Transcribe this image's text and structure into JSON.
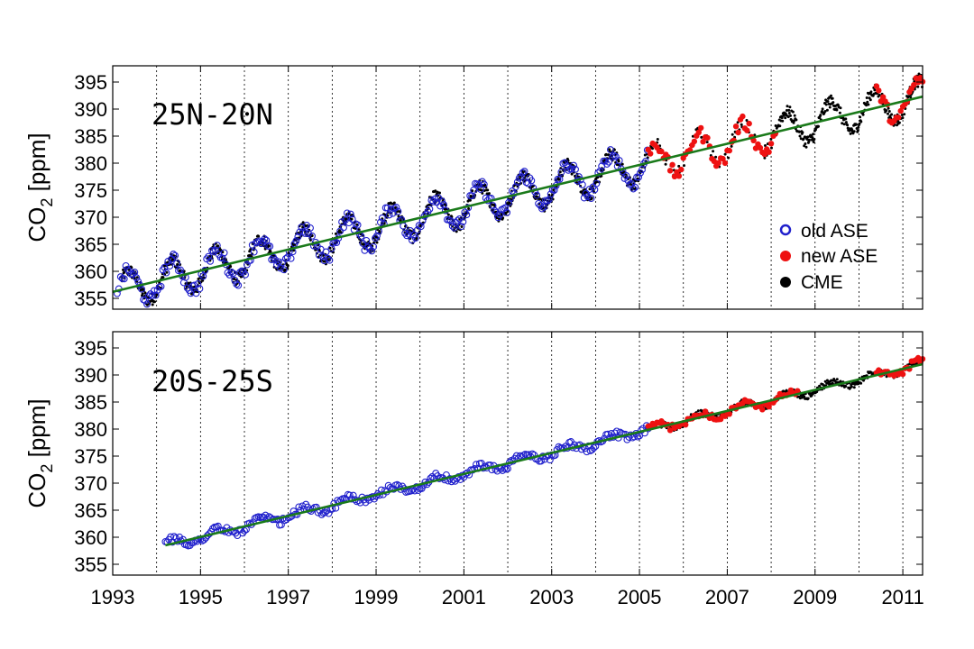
{
  "chart_data": [
    {
      "type": "scatter",
      "panel_label": "25N-20N",
      "ylabel": "CO",
      "ylabel_sub": "2",
      "ylabel_unit": " [ppm]",
      "ylim": [
        353,
        398
      ],
      "yticks": [
        355,
        360,
        365,
        370,
        375,
        380,
        385,
        390,
        395
      ],
      "x_range": [
        1993.0,
        2011.45
      ],
      "vlines": [
        1994,
        1995,
        1996,
        1997,
        1998,
        1999,
        2000,
        2001,
        2002,
        2003,
        2004,
        2005,
        2006,
        2007,
        2008,
        2009,
        2010,
        2011
      ],
      "trend": {
        "x0": 1993.0,
        "y0": 356.2,
        "x1": 2011.45,
        "y1": 392.3,
        "color": "#1a7a1a"
      },
      "seasonal_amplitude": 3.2,
      "series": [
        {
          "name": "old ASE",
          "style": "open-circle",
          "color": "#2020cc",
          "x_range": [
            1993.1,
            2005.2
          ],
          "step": 0.04
        },
        {
          "name": "new ASE",
          "style": "filled-circle",
          "color": "#ee1111",
          "x_range": [
            2005.2,
            2008.1
          ],
          "extra_x_range": [
            2010.4,
            2011.45
          ],
          "step": 0.05
        },
        {
          "name": "CME",
          "style": "small-dot",
          "color": "#000000",
          "x_range": [
            1993.2,
            2011.45
          ],
          "step": 0.012
        }
      ]
    },
    {
      "type": "scatter",
      "panel_label": "20S-25S",
      "ylabel": "CO",
      "ylabel_sub": "2",
      "ylabel_unit": " [ppm]",
      "ylim": [
        353,
        398
      ],
      "yticks": [
        355,
        360,
        365,
        370,
        375,
        380,
        385,
        390,
        395
      ],
      "x_range": [
        1993.0,
        2011.45
      ],
      "vlines": [
        1994,
        1995,
        1996,
        1997,
        1998,
        1999,
        2000,
        2001,
        2002,
        2003,
        2004,
        2005,
        2006,
        2007,
        2008,
        2009,
        2010,
        2011
      ],
      "trend": {
        "x0": 1994.2,
        "y0": 358.5,
        "x1": 2011.45,
        "y1": 392.0,
        "color": "#1a7a1a"
      },
      "seasonal_amplitude": 0.8,
      "series": [
        {
          "name": "old ASE",
          "style": "open-circle",
          "color": "#2020cc",
          "x_range": [
            1994.2,
            2005.2
          ],
          "step": 0.04
        },
        {
          "name": "new ASE",
          "style": "filled-circle",
          "color": "#ee1111",
          "x_range": [
            2005.2,
            2008.6
          ],
          "extra_x_range": [
            2010.4,
            2011.45
          ],
          "step": 0.05
        },
        {
          "name": "CME",
          "style": "small-dot",
          "color": "#000000",
          "x_range": [
            2005.5,
            2011.45
          ],
          "step": 0.015
        }
      ]
    }
  ],
  "x_tick_labels": [
    "1993",
    "1995",
    "1997",
    "1999",
    "2001",
    "2003",
    "2005",
    "2007",
    "2009",
    "2011"
  ],
  "x_tick_values": [
    1993,
    1995,
    1997,
    1999,
    2001,
    2003,
    2005,
    2007,
    2009,
    2011
  ],
  "legend": [
    {
      "label": "old ASE",
      "style": "open-circle",
      "color": "#2020cc"
    },
    {
      "label": "new ASE",
      "style": "filled-circle",
      "color": "#ee1111"
    },
    {
      "label": "CME",
      "style": "filled-circle",
      "color": "#000000"
    }
  ],
  "legend_position": "top-panel lower-right"
}
